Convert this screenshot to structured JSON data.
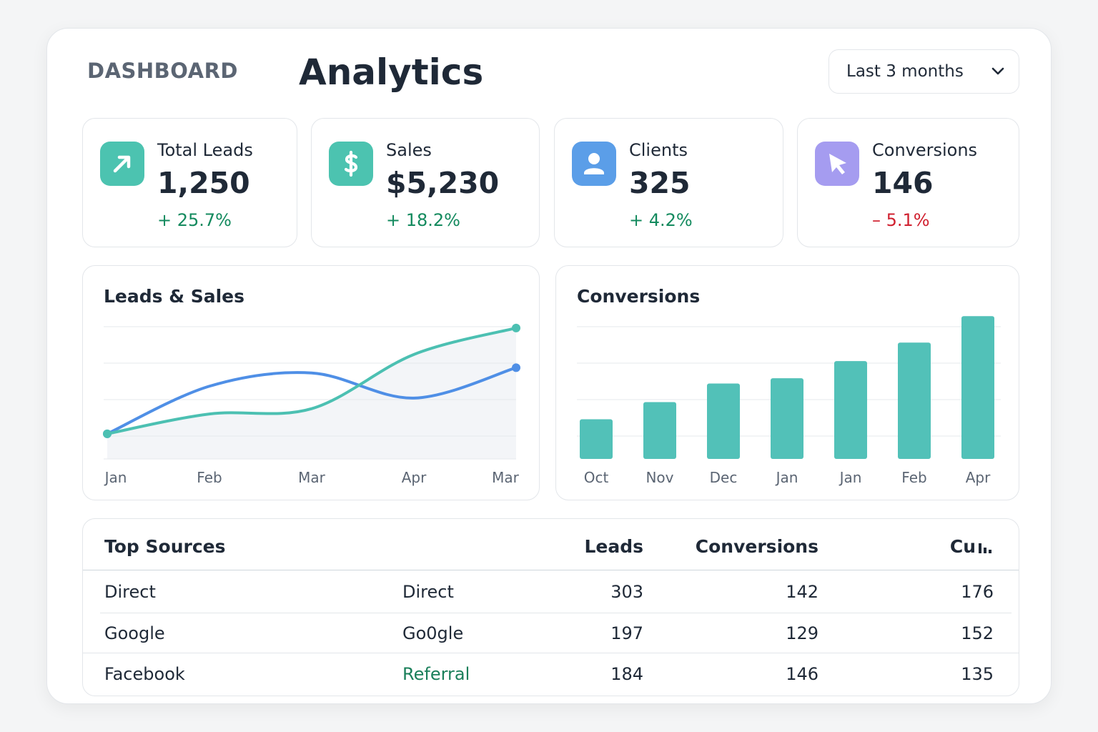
{
  "header": {
    "section": "DASHBOARD",
    "title": "Analytics",
    "range": "Last 3 months"
  },
  "kpis": [
    {
      "label": "Total Leads",
      "value": "1,250",
      "change": "+ 25.7%"
    },
    {
      "label": "Sales",
      "value": "$5,230",
      "change": "+ 18.2%"
    },
    {
      "label": "Clients",
      "value": "325",
      "change": "+ 4.2%"
    },
    {
      "label": "Conversions",
      "value": "146",
      "change": "– 5.1%"
    }
  ],
  "chart_data": [
    {
      "type": "line",
      "title": "Leads & Sales",
      "categories": [
        "Jan",
        "Feb",
        "Mar",
        "Apr",
        "Mar"
      ],
      "series": [
        {
          "color": "#4f8fe6",
          "values": [
            19,
            55,
            65,
            46,
            69
          ]
        },
        {
          "color": "#4cc0b2",
          "values": [
            19,
            34,
            38,
            79,
            99
          ]
        }
      ],
      "ylim": [
        0,
        100
      ],
      "grid": true
    },
    {
      "type": "bar",
      "title": "Conversions",
      "categories": [
        "Oct",
        "Nov",
        "Dec",
        "Jan",
        "Jan",
        "Feb",
        "Apr"
      ],
      "values": [
        30,
        43,
        57,
        61,
        74,
        88,
        108
      ],
      "color": "#52c1b8",
      "ylim": [
        0,
        110
      ],
      "grid": true
    }
  ],
  "table": {
    "title": "Top Sources",
    "headers": [
      "Leads",
      "Conversions",
      "Cu"
    ],
    "rows": [
      [
        "Direct",
        "Direct",
        303,
        142,
        176
      ],
      [
        "Google",
        "Go0gle",
        197,
        129,
        152
      ],
      [
        "Facebook",
        "Referral",
        184,
        146,
        135
      ]
    ]
  }
}
